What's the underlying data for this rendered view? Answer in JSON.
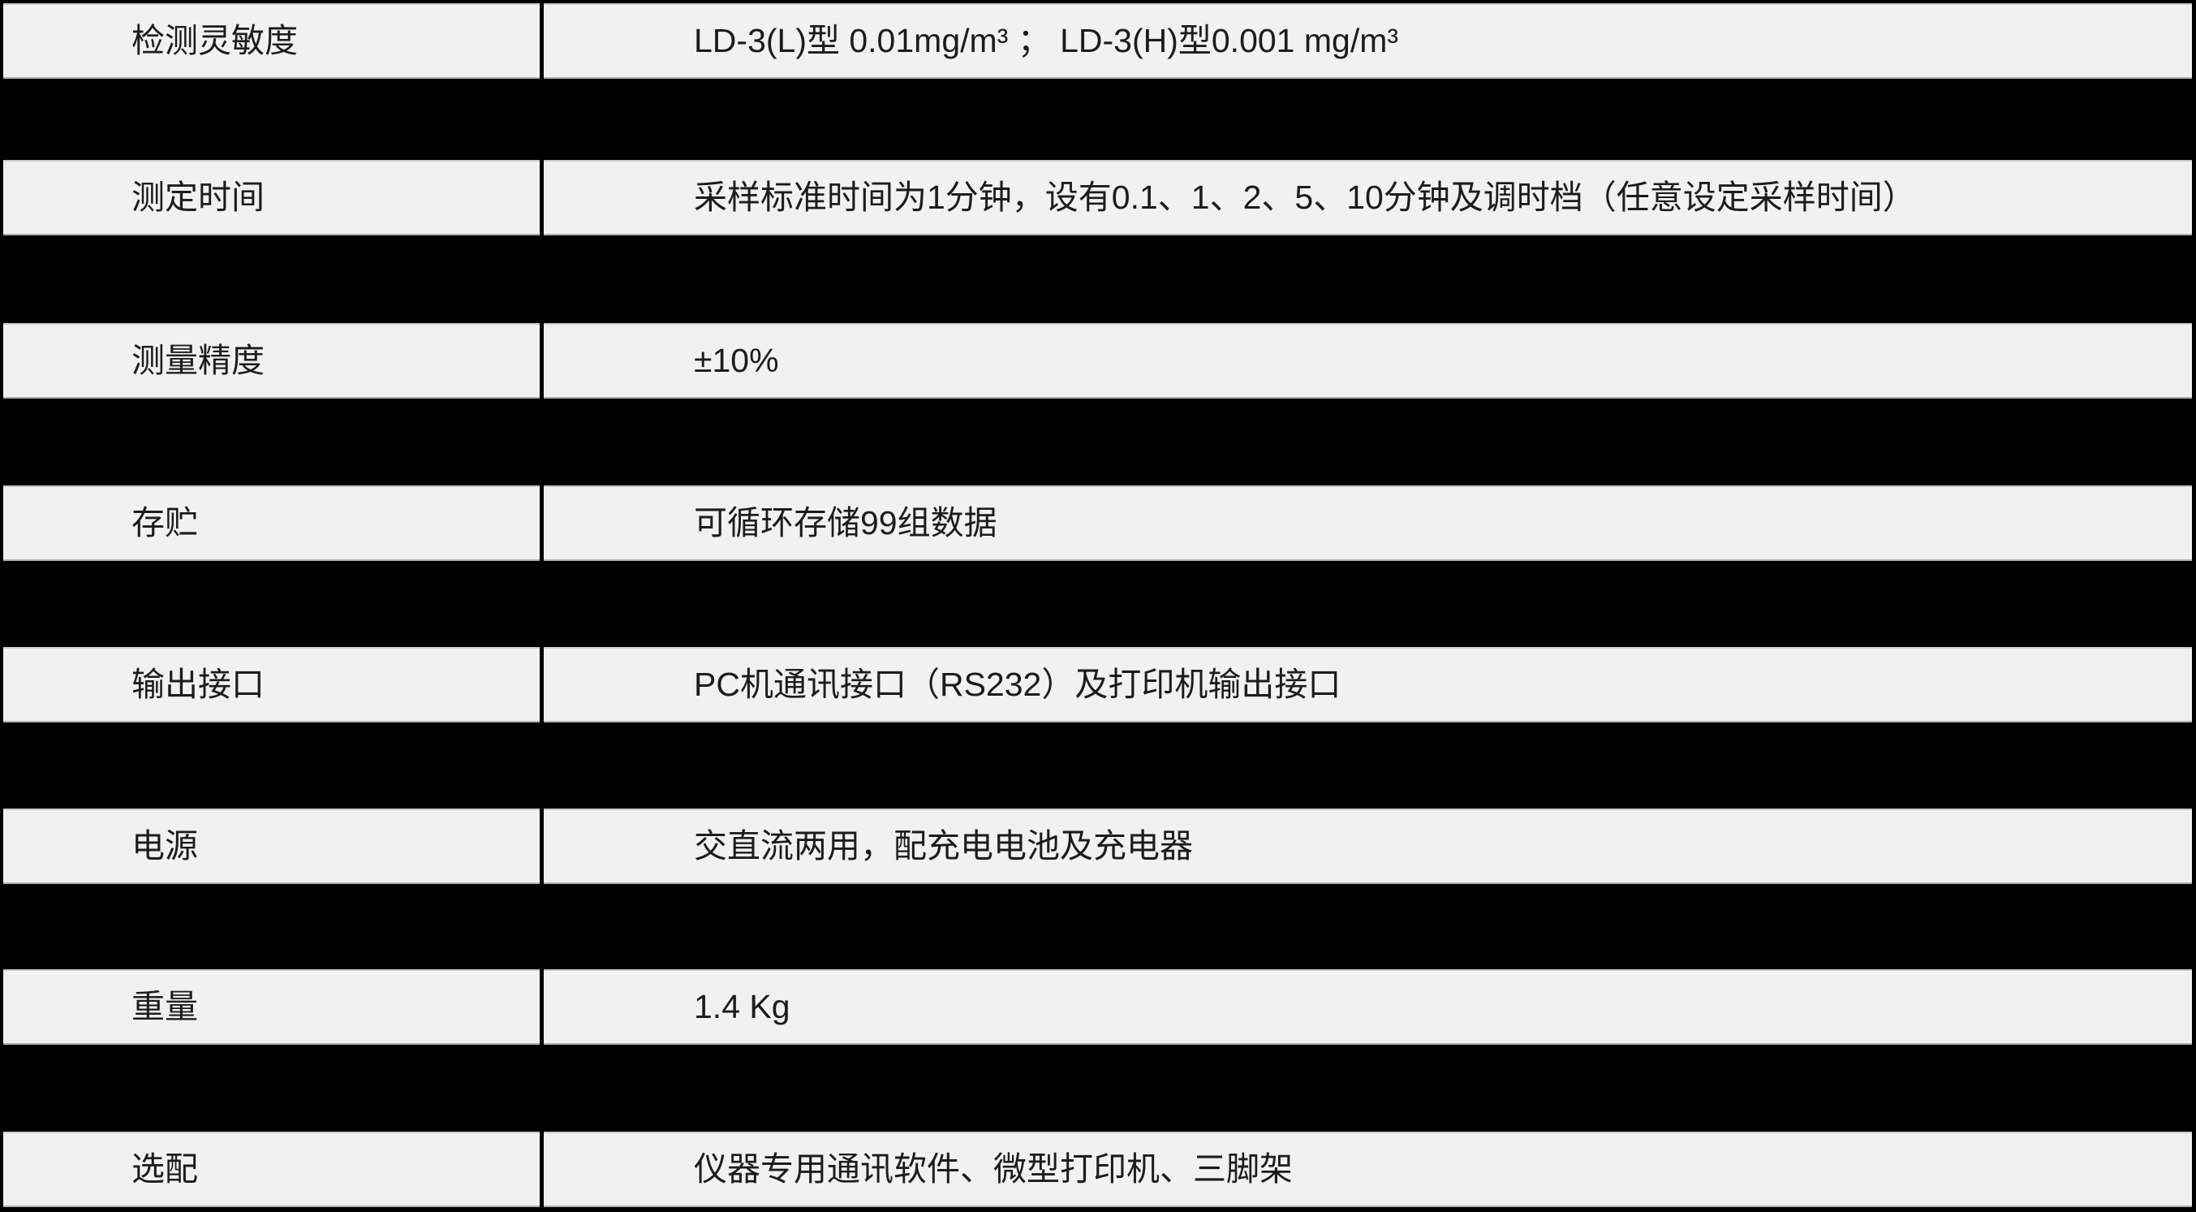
{
  "table": {
    "description": "Instrument specification table (LD-3 dust meter)",
    "colors": {
      "row_background": "#f1f1f1",
      "table_background": "#000000",
      "text": "#1c1c1c",
      "hairline_top": "#cbcbcb",
      "hairline_bottom": "#b0b0b0"
    },
    "rows": [
      {
        "label": "检测灵敏度",
        "value": "LD-3(L)型 0.01mg/m³ ； LD-3(H)型0.001 mg/m³"
      },
      {
        "label": "测定时间",
        "value": "采样标准时间为1分钟，设有0.1、1、2、5、10分钟及调时档（任意设定采样时间）"
      },
      {
        "label": "测量精度",
        "value": "±10%"
      },
      {
        "label": "存贮",
        "value": "可循环存储99组数据"
      },
      {
        "label": "输出接口",
        "value": "PC机通讯接口（RS232）及打印机输出接口"
      },
      {
        "label": "电源",
        "value": "交直流两用，配充电电池及充电器"
      },
      {
        "label": "重量",
        "value": "1.4 Kg"
      },
      {
        "label": "选配",
        "value": "仪器专用通讯软件、微型打印机、三脚架"
      }
    ]
  }
}
